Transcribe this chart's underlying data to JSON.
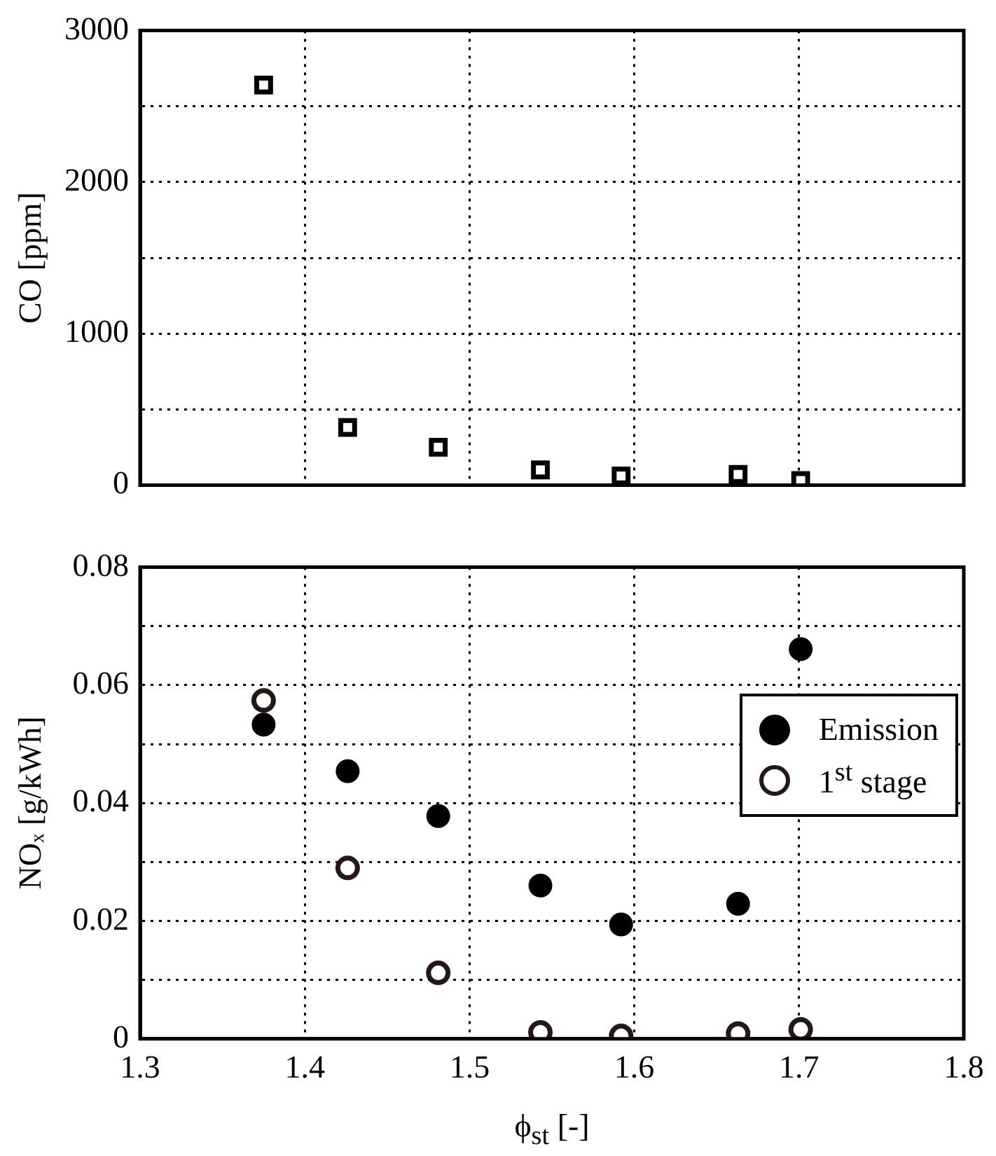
{
  "chart_data": [
    {
      "type": "scatter",
      "ylabel": "CO [ppm]",
      "x": [
        1.375,
        1.426,
        1.481,
        1.543,
        1.592,
        1.663,
        1.701
      ],
      "series": [
        {
          "color": "#000000",
          "marker": "square",
          "values": [
            2640,
            380,
            250,
            100,
            60,
            70,
            30
          ]
        }
      ],
      "xlim": [
        1.3,
        1.8
      ],
      "xticks": [
        {
          "value": 1.3,
          "label": null
        },
        {
          "value": 1.4,
          "label": null
        },
        {
          "value": 1.5,
          "label": null
        },
        {
          "value": 1.6,
          "label": null
        },
        {
          "value": 1.7,
          "label": null
        },
        {
          "value": 1.8,
          "label": null
        }
      ],
      "ylim": [
        0,
        3000
      ],
      "yticks": [
        0,
        {
          "value": 500,
          "label": null
        },
        1000,
        {
          "value": 1500,
          "label": null
        },
        2000,
        {
          "value": 2500,
          "label": null
        },
        3000
      ],
      "tick_labels": "y",
      "grid": true,
      "legend": false
    },
    {
      "type": "scatter",
      "ylabel": "NOₓ [g/kWh]",
      "xlabel": "ϕ$_{st}$ [-]",
      "x": [
        1.375,
        1.426,
        1.481,
        1.543,
        1.592,
        1.663,
        1.701
      ],
      "series": [
        {
          "name": "Emission",
          "color": "#000000",
          "marker": "circle",
          "values": [
            0.0533,
            0.0454,
            0.0378,
            0.026,
            0.0194,
            0.0229,
            0.0661
          ]
        },
        {
          "name": "1$^{st}$ stage",
          "color": "#231815",
          "marker": "circle",
          "values": [
            0.0574,
            0.029,
            0.0112,
            0.0011,
            0.0005,
            0.0009,
            0.0016
          ]
        }
      ],
      "xlim": [
        1.3,
        1.8
      ],
      "xticks": [
        1.3,
        1.4,
        1.5,
        1.6,
        1.7,
        1.8
      ],
      "ylim": [
        0,
        0.08
      ],
      "yticks": [
        0,
        {
          "value": 0.01,
          "label": null
        },
        0.02,
        {
          "value": 0.03,
          "label": null
        },
        0.04,
        {
          "value": 0.05,
          "label": null
        },
        0.06,
        {
          "value": 0.07,
          "label": null
        },
        0.08
      ],
      "grid": true,
      "legend": "right"
    }
  ]
}
